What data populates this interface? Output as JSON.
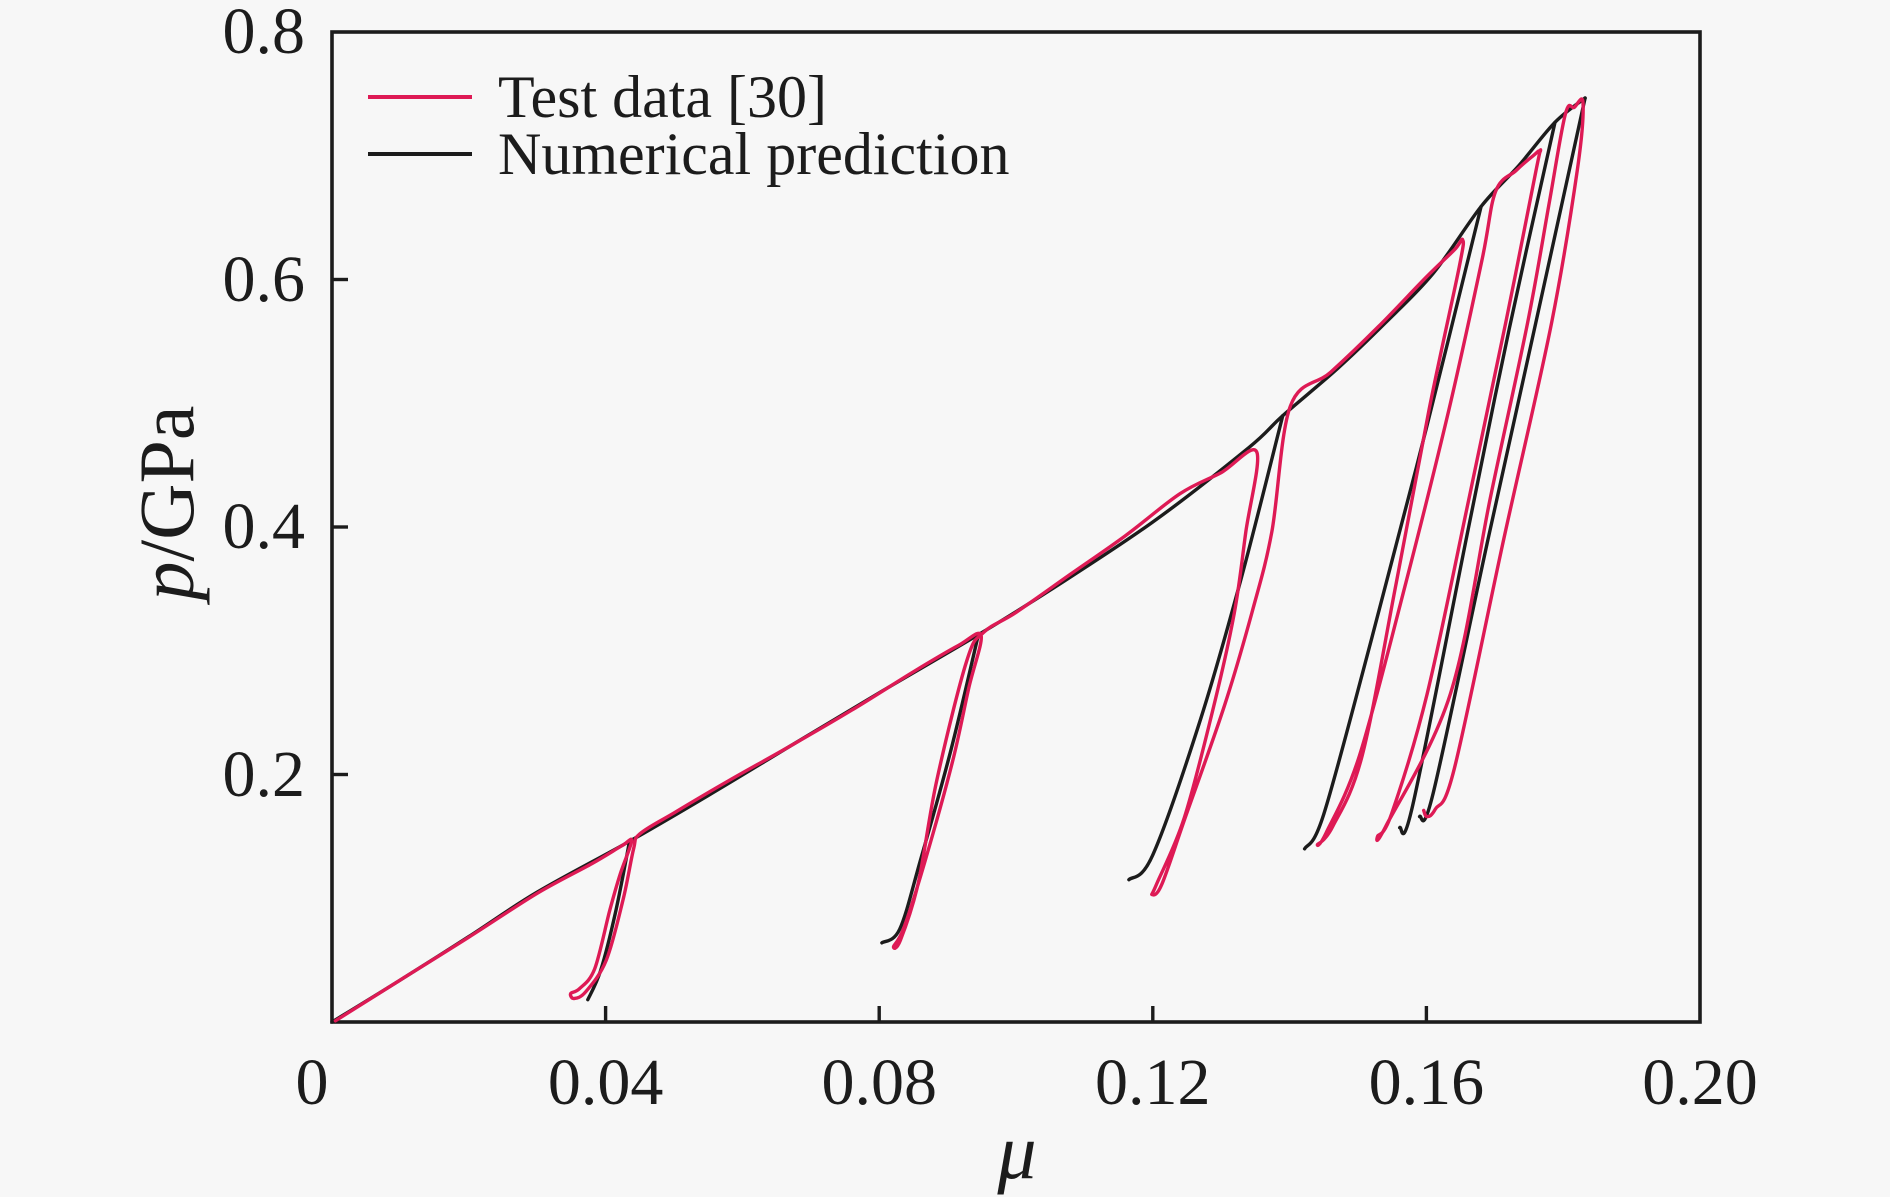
{
  "figure": {
    "background": "#f7f7f7",
    "axis_color": "#1c1c1c",
    "text_color": "#1c1c1c"
  },
  "chart_data": {
    "type": "line",
    "title": "",
    "xlabel": "μ",
    "ylabel": "p/GPa",
    "ylabel_italic": "p",
    "ylabel_rest": "/GPa",
    "xlim": [
      0,
      0.2
    ],
    "ylim": [
      0,
      0.8
    ],
    "grid": false,
    "legend_position": "upper-left-inside",
    "x_ticks": [
      {
        "value": 0.0,
        "label": "0",
        "mark": false,
        "dx": -20
      },
      {
        "value": 0.04,
        "label": "0.04",
        "mark": true,
        "dx": 0
      },
      {
        "value": 0.08,
        "label": "0.08",
        "mark": true,
        "dx": 0
      },
      {
        "value": 0.12,
        "label": "0.12",
        "mark": true,
        "dx": 0
      },
      {
        "value": 0.16,
        "label": "0.16",
        "mark": true,
        "dx": 0
      },
      {
        "value": 0.2,
        "label": "0.20",
        "mark": false,
        "dx": 0
      }
    ],
    "y_ticks": [
      {
        "value": 0.2,
        "label": "0.2",
        "mark": true
      },
      {
        "value": 0.4,
        "label": "0.4",
        "mark": true
      },
      {
        "value": 0.6,
        "label": "0.6",
        "mark": true
      },
      {
        "value": 0.8,
        "label": "0.8",
        "mark": false
      }
    ],
    "series": [
      {
        "name": "Numerical prediction",
        "color": "#1c1c1c",
        "width": 3.4,
        "paths": [
          [
            [
              0.0,
              0.0
            ],
            [
              0.01,
              0.034
            ],
            [
              0.02,
              0.069
            ],
            [
              0.03,
              0.105
            ],
            [
              0.0435,
              0.146
            ],
            [
              0.055,
              0.183
            ],
            [
              0.067,
              0.223
            ],
            [
              0.08,
              0.266
            ],
            [
              0.0945,
              0.313
            ],
            [
              0.105,
              0.349
            ],
            [
              0.12,
              0.404
            ],
            [
              0.134,
              0.464
            ],
            [
              0.139,
              0.49
            ],
            [
              0.147,
              0.528
            ],
            [
              0.154,
              0.565
            ],
            [
              0.161,
              0.605
            ],
            [
              0.168,
              0.659
            ],
            [
              0.1735,
              0.692
            ],
            [
              0.1788,
              0.727
            ],
            [
              0.1832,
              0.7467
            ]
          ],
          [
            [
              0.0435,
              0.146
            ],
            [
              0.0415,
              0.09
            ],
            [
              0.0393,
              0.042
            ],
            [
              0.0374,
              0.018
            ]
          ],
          [
            [
              0.0945,
              0.313
            ],
            [
              0.0905,
              0.22
            ],
            [
              0.086,
              0.13
            ],
            [
              0.083,
              0.075
            ],
            [
              0.0804,
              0.064
            ]
          ],
          [
            [
              0.139,
              0.49
            ],
            [
              0.133,
              0.36
            ],
            [
              0.127,
              0.245
            ],
            [
              0.12,
              0.135
            ],
            [
              0.1165,
              0.115
            ]
          ],
          [
            [
              0.168,
              0.659
            ],
            [
              0.16,
              0.48
            ],
            [
              0.152,
              0.31
            ],
            [
              0.145,
              0.168
            ],
            [
              0.1422,
              0.14
            ]
          ],
          [
            [
              0.1788,
              0.727
            ],
            [
              0.1721,
              0.56
            ],
            [
              0.166,
              0.395
            ],
            [
              0.158,
              0.175
            ],
            [
              0.1561,
              0.157
            ]
          ],
          [
            [
              0.1832,
              0.7467
            ],
            [
              0.176,
              0.565
            ],
            [
              0.169,
              0.39
            ],
            [
              0.161,
              0.185
            ],
            [
              0.159,
              0.166
            ]
          ]
        ]
      },
      {
        "name": "Test data [30]",
        "color": "#de1a55",
        "width": 3.4,
        "paths": [
          [
            [
              0.0005,
              0.001
            ],
            [
              0.01,
              0.034
            ],
            [
              0.02,
              0.0685
            ],
            [
              0.03,
              0.104
            ],
            [
              0.038,
              0.128
            ],
            [
              0.0424,
              0.1425
            ],
            [
              0.0438,
              0.1462
            ],
            [
              0.0421,
              0.119
            ],
            [
              0.0406,
              0.09
            ],
            [
              0.0384,
              0.043
            ],
            [
              0.0362,
              0.027
            ],
            [
              0.0349,
              0.023
            ],
            [
              0.0354,
              0.019
            ],
            [
              0.0371,
              0.0245
            ],
            [
              0.0401,
              0.05
            ],
            [
              0.0426,
              0.1
            ],
            [
              0.0441,
              0.14
            ],
            [
              0.045,
              0.152
            ],
            [
              0.05,
              0.169
            ],
            [
              0.058,
              0.195
            ],
            [
              0.067,
              0.223
            ],
            [
              0.076,
              0.252
            ],
            [
              0.085,
              0.283
            ],
            [
              0.0915,
              0.304
            ],
            [
              0.0949,
              0.3123
            ],
            [
              0.0931,
              0.27
            ],
            [
              0.0907,
              0.21
            ],
            [
              0.0866,
              0.128
            ],
            [
              0.0836,
              0.076
            ],
            [
              0.0821,
              0.061
            ],
            [
              0.0831,
              0.066
            ],
            [
              0.0857,
              0.112
            ],
            [
              0.0884,
              0.195
            ],
            [
              0.0928,
              0.292
            ],
            [
              0.0953,
              0.315
            ],
            [
              0.1,
              0.331
            ],
            [
              0.108,
              0.362
            ],
            [
              0.116,
              0.393
            ],
            [
              0.124,
              0.427
            ],
            [
              0.13,
              0.444
            ],
            [
              0.1352,
              0.4605
            ],
            [
              0.1336,
              0.396
            ],
            [
              0.1319,
              0.33
            ],
            [
              0.1289,
              0.255
            ],
            [
              0.1246,
              0.165
            ],
            [
              0.1206,
              0.112
            ],
            [
              0.1199,
              0.103
            ],
            [
              0.1213,
              0.111
            ],
            [
              0.1248,
              0.166
            ],
            [
              0.1305,
              0.256
            ],
            [
              0.1345,
              0.331
            ],
            [
              0.1374,
              0.396
            ],
            [
              0.1401,
              0.4975
            ],
            [
              0.146,
              0.525
            ],
            [
              0.153,
              0.562
            ],
            [
              0.16,
              0.602
            ],
            [
              0.1641,
              0.624
            ],
            [
              0.1653,
              0.632
            ],
            [
              0.1648,
              0.61
            ],
            [
              0.1604,
              0.495
            ],
            [
              0.1556,
              0.355
            ],
            [
              0.1506,
              0.215
            ],
            [
              0.1463,
              0.158
            ],
            [
              0.1441,
              0.1435
            ],
            [
              0.1453,
              0.1525
            ],
            [
              0.1502,
              0.215
            ],
            [
              0.157,
              0.355
            ],
            [
              0.1633,
              0.495
            ],
            [
              0.1681,
              0.615
            ],
            [
              0.1701,
              0.671
            ],
            [
              0.1731,
              0.688
            ],
            [
              0.1756,
              0.7
            ],
            [
              0.1766,
              0.7035
            ],
            [
              0.1761,
              0.69
            ],
            [
              0.1716,
              0.565
            ],
            [
              0.1663,
              0.425
            ],
            [
              0.1601,
              0.265
            ],
            [
              0.1549,
              0.168
            ],
            [
              0.1529,
              0.1505
            ],
            [
              0.1541,
              0.1585
            ],
            [
              0.1635,
              0.265
            ],
            [
              0.1694,
              0.425
            ],
            [
              0.1748,
              0.565
            ],
            [
              0.1779,
              0.66
            ],
            [
              0.1803,
              0.7335
            ],
            [
              0.1816,
              0.739
            ],
            [
              0.1829,
              0.7428
            ],
            [
              0.1821,
              0.69
            ],
            [
              0.1783,
              0.565
            ],
            [
              0.1713,
              0.39
            ],
            [
              0.1641,
              0.205
            ],
            [
              0.1613,
              0.172
            ],
            [
              0.1601,
              0.166
            ],
            [
              0.1596,
              0.171
            ]
          ]
        ]
      }
    ]
  },
  "legend": {
    "items": [
      {
        "label": "Test data [30]"
      },
      {
        "label": "Numerical prediction"
      }
    ]
  }
}
